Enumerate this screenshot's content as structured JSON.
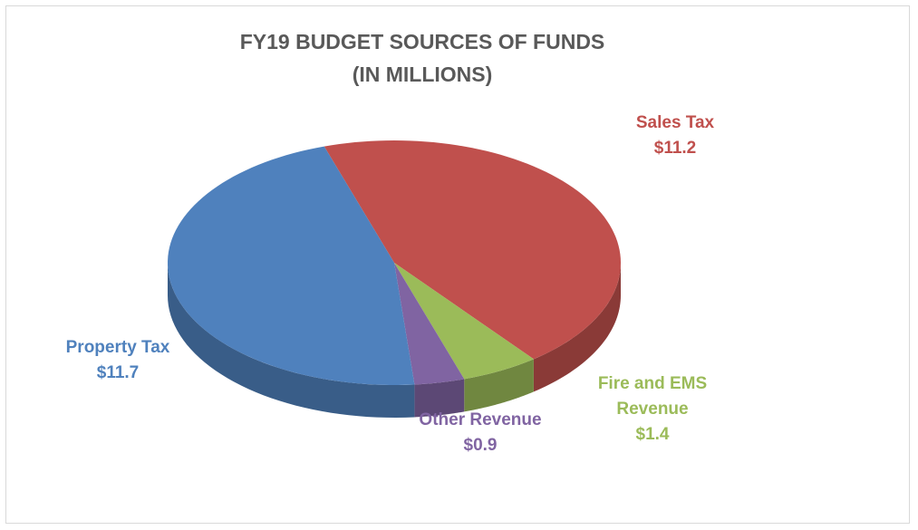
{
  "chart_data": {
    "type": "pie",
    "title": "FY19 BUDGET SOURCES OF FUNDS (IN MILLIONS)",
    "categories": [
      "Sales Tax",
      "Fire and EMS Revenue",
      "Other Revenue",
      "Property Tax"
    ],
    "values": [
      11.2,
      1.4,
      0.9,
      11.7
    ],
    "value_labels": [
      "$11.2",
      "$1.4",
      "$0.9",
      "$11.7"
    ],
    "colors": [
      "#c0504d",
      "#9bbb59",
      "#8064a2",
      "#4f81bd"
    ]
  }
}
